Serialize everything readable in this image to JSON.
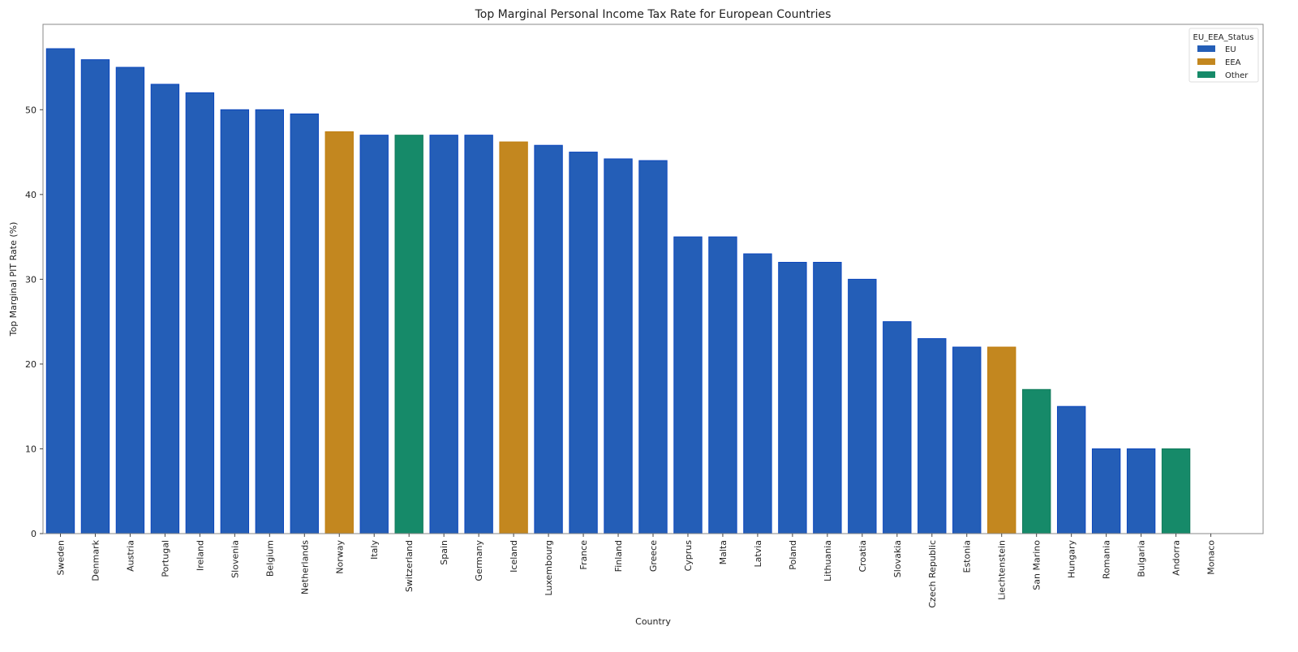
{
  "chart_data": {
    "type": "bar",
    "title": "Top Marginal Personal Income Tax Rate for European Countries",
    "xlabel": "Country",
    "ylabel": "Top Marginal PIT Rate (%)",
    "ylim": [
      0,
      60
    ],
    "yticks": [
      0,
      10,
      20,
      30,
      40,
      50
    ],
    "grid": false,
    "legend": {
      "title": "EU_EEA_Status",
      "placement": "top-right",
      "entries": [
        {
          "label": "EU",
          "color": "#245eb7"
        },
        {
          "label": "EEA",
          "color": "#c3871f"
        },
        {
          "label": "Other",
          "color": "#168a69"
        }
      ]
    },
    "categories": [
      "Sweden",
      "Denmark",
      "Austria",
      "Portugal",
      "Ireland",
      "Slovenia",
      "Belgium",
      "Netherlands",
      "Norway",
      "Italy",
      "Switzerland",
      "Spain",
      "Germany",
      "Iceland",
      "Luxembourg",
      "France",
      "Finland",
      "Greece",
      "Cyprus",
      "Malta",
      "Latvia",
      "Poland",
      "Lithuania",
      "Croatia",
      "Slovakia",
      "Czech Republic",
      "Estonia",
      "Liechtenstein",
      "San Marino",
      "Hungary",
      "Romania",
      "Bulgaria",
      "Andorra",
      "Monaco"
    ],
    "values": [
      57.2,
      55.9,
      55,
      53,
      52,
      50,
      50,
      49.5,
      47.4,
      47,
      47,
      47,
      47,
      46.2,
      45.8,
      45,
      44.2,
      44,
      35,
      35,
      33,
      32,
      32,
      30,
      25,
      23,
      22,
      22,
      17,
      15,
      10,
      10,
      10,
      0
    ],
    "status": [
      "EU",
      "EU",
      "EU",
      "EU",
      "EU",
      "EU",
      "EU",
      "EU",
      "EEA",
      "EU",
      "Other",
      "EU",
      "EU",
      "EEA",
      "EU",
      "EU",
      "EU",
      "EU",
      "EU",
      "EU",
      "EU",
      "EU",
      "EU",
      "EU",
      "EU",
      "EU",
      "EU",
      "EEA",
      "Other",
      "EU",
      "EU",
      "EU",
      "Other",
      "Other"
    ]
  }
}
